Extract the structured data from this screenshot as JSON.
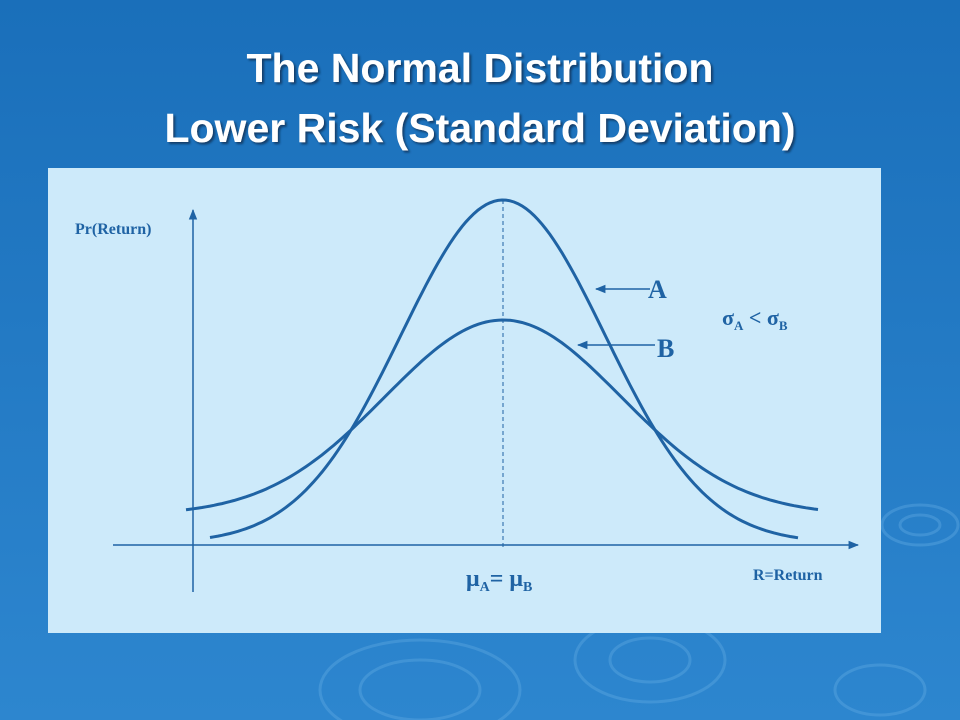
{
  "title": {
    "line1": "The Normal Distribution",
    "line2": "Lower Risk (Standard Deviation)"
  },
  "diagram": {
    "y_axis_label": "Pr(Return)",
    "x_axis_label": "R=Return",
    "curve_a_label": "A",
    "curve_b_label": "B",
    "sigma_relation": {
      "left": "σ",
      "left_sub": "A",
      "op": " < ",
      "right": "σ",
      "right_sub": "B"
    },
    "mean_relation": {
      "left": "μ",
      "left_sub": "A",
      "op": "= ",
      "right": "μ",
      "right_sub": "B"
    }
  }
}
